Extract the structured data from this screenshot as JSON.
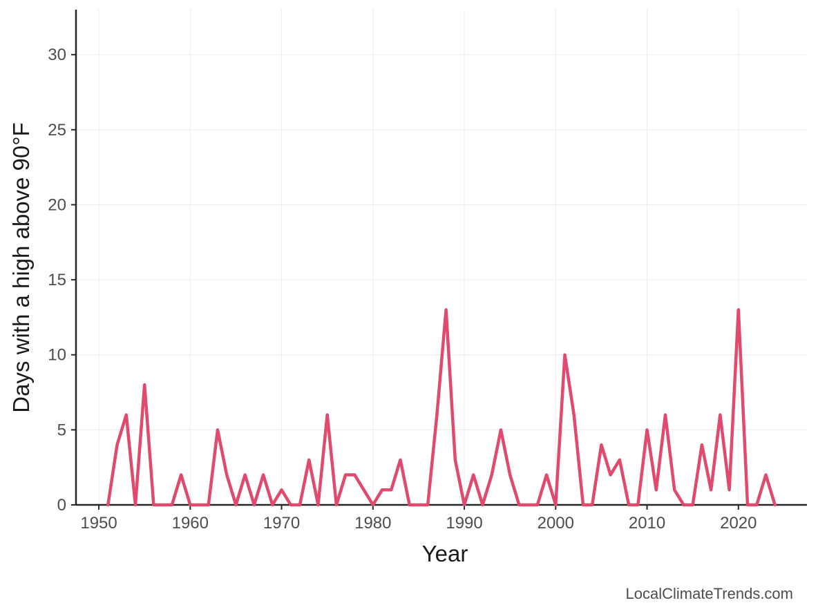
{
  "chart_data": {
    "type": "line",
    "title": "",
    "xlabel": "Year",
    "ylabel": "Days with a high above 90°F",
    "xlim": [
      1947.5,
      2027.5
    ],
    "ylim": [
      0,
      33
    ],
    "xticks": [
      1950,
      1960,
      1970,
      1980,
      1990,
      2000,
      2010,
      2020
    ],
    "yticks": [
      0,
      5,
      10,
      15,
      20,
      25,
      30
    ],
    "grid": true,
    "legend": "none",
    "series": [
      {
        "color": "#e04a6d",
        "x": [
          1951,
          1952,
          1953,
          1954,
          1955,
          1956,
          1957,
          1958,
          1959,
          1960,
          1961,
          1962,
          1963,
          1964,
          1965,
          1966,
          1967,
          1968,
          1969,
          1970,
          1971,
          1972,
          1973,
          1974,
          1975,
          1976,
          1977,
          1978,
          1979,
          1980,
          1981,
          1982,
          1983,
          1984,
          1985,
          1986,
          1987,
          1988,
          1989,
          1990,
          1991,
          1992,
          1993,
          1994,
          1995,
          1996,
          1997,
          1998,
          1999,
          2000,
          2001,
          2002,
          2003,
          2004,
          2005,
          2006,
          2007,
          2008,
          2009,
          2010,
          2011,
          2012,
          2013,
          2014,
          2015,
          2016,
          2017,
          2018,
          2019,
          2020,
          2021,
          2022,
          2023,
          2024
        ],
        "values": [
          0,
          4,
          6,
          0,
          8,
          0,
          0,
          0,
          2,
          0,
          0,
          0,
          5,
          2,
          0,
          2,
          0,
          2,
          0,
          1,
          0,
          0,
          3,
          0,
          6,
          0,
          2,
          2,
          1,
          0,
          1,
          1,
          3,
          0,
          0,
          0,
          6,
          13,
          3,
          0,
          2,
          0,
          2,
          5,
          2,
          0,
          0,
          0,
          2,
          0,
          10,
          6,
          0,
          0,
          4,
          2,
          3,
          0,
          0,
          5,
          1,
          6,
          1,
          0,
          0,
          4,
          1,
          6,
          1,
          13,
          0,
          0,
          2,
          0
        ]
      }
    ]
  },
  "credit": "LocalClimateTrends.com"
}
